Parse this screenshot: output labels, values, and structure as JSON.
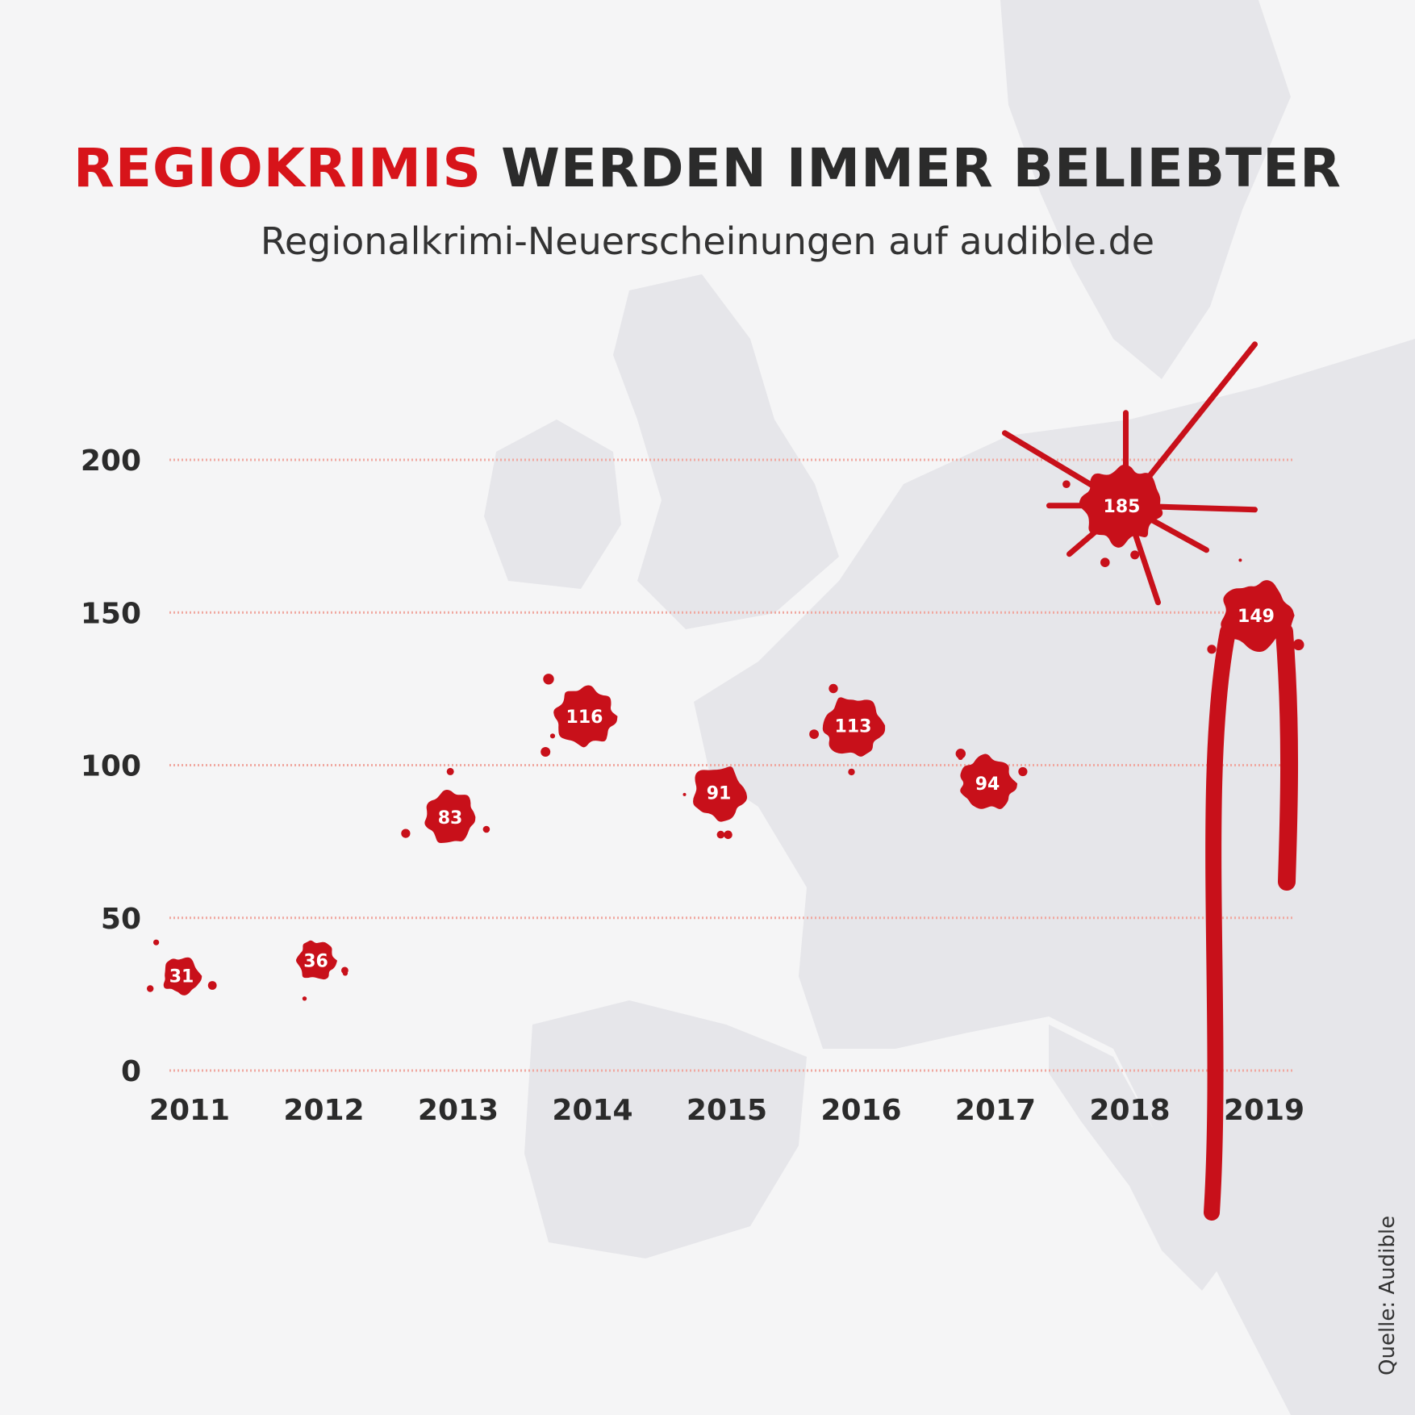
{
  "title": {
    "accent": "REGIOKRIMIS",
    "rest": "WERDEN IMMER BELIEBTER"
  },
  "subtitle": "Regionalkrimi-Neuerscheinungen auf audible.de",
  "source": "Quelle: Audible",
  "colors": {
    "accent": "#d7141a",
    "blood": "#c8101a",
    "gridline": "#f0a8a0",
    "text": "#2b2b2b",
    "map": "#e6e6ea",
    "background": "#f5f5f6"
  },
  "chart_data": {
    "type": "scatter",
    "title": "REGIOKRIMIS WERDEN IMMER BELIEBTER",
    "subtitle": "Regionalkrimi-Neuerscheinungen auf audible.de",
    "xlabel": "",
    "ylabel": "",
    "x": [
      "2011",
      "2012",
      "2013",
      "2014",
      "2015",
      "2016",
      "2017",
      "2018",
      "2019"
    ],
    "values": [
      31,
      36,
      83,
      116,
      91,
      113,
      94,
      185,
      149
    ],
    "data_labels": [
      "31",
      "36",
      "83",
      "116",
      "91",
      "113",
      "94",
      "185",
      "149"
    ],
    "yticks": [
      0,
      50,
      100,
      150,
      200
    ],
    "ylim": [
      0,
      200
    ],
    "grid": true,
    "marker_style": "blood splatter"
  }
}
